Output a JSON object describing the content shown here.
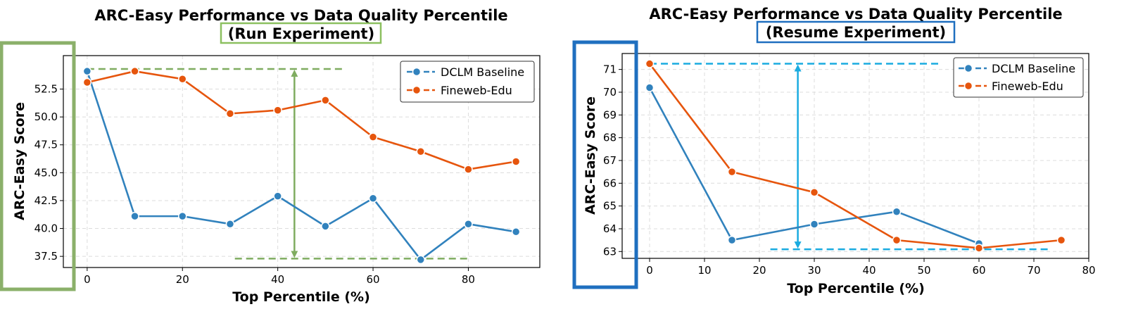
{
  "chart_data": [
    {
      "type": "line",
      "title": "ARC-Easy Performance vs Data Quality Percentile",
      "subtitle": "(Run Experiment)",
      "xlabel": "Top Percentile (%)",
      "ylabel": "ARC-Easy Score",
      "xlim": [
        -5,
        95
      ],
      "ylim": [
        36.5,
        55.5
      ],
      "xticks": [
        "0",
        "20",
        "40",
        "60",
        "80"
      ],
      "yticks": [
        "37.5",
        "40.0",
        "42.5",
        "45.0",
        "47.5",
        "50.0",
        "52.5"
      ],
      "grid": true,
      "legend_position": "top-right",
      "series": [
        {
          "name": "DCLM Baseline",
          "color": "#3182bd",
          "x": [
            0,
            10,
            20,
            30,
            40,
            50,
            60,
            70,
            80,
            90
          ],
          "y": [
            54.1,
            41.1,
            41.1,
            40.4,
            42.9,
            40.2,
            42.7,
            37.2,
            40.4,
            39.7
          ]
        },
        {
          "name": "Fineweb-Edu",
          "color": "#e6550d",
          "x": [
            0,
            10,
            20,
            30,
            40,
            50,
            60,
            70,
            80,
            90
          ],
          "y": [
            53.1,
            54.1,
            53.4,
            50.3,
            50.6,
            51.5,
            48.2,
            46.9,
            45.3,
            46.0
          ]
        }
      ],
      "annotation": {
        "color": "#7fac60",
        "top_value": 54.3,
        "bottom_value": 37.3,
        "top_line_x": [
          0,
          54
        ],
        "bottom_line_x": [
          31,
          80
        ],
        "arrow_x": 43.5
      }
    },
    {
      "type": "line",
      "title": "ARC-Easy Performance vs Data Quality Percentile",
      "subtitle": "(Resume Experiment)",
      "xlabel": "Top Percentile (%)",
      "ylabel": "ARC-Easy Score",
      "xlim": [
        -5,
        80
      ],
      "ylim": [
        62.7,
        71.7
      ],
      "xticks": [
        "0",
        "10",
        "20",
        "30",
        "40",
        "50",
        "60",
        "70",
        "80"
      ],
      "yticks": [
        "63",
        "64",
        "65",
        "66",
        "67",
        "68",
        "69",
        "70",
        "71"
      ],
      "grid": true,
      "legend_position": "top-right",
      "series": [
        {
          "name": "DCLM Baseline",
          "color": "#3182bd",
          "x": [
            0,
            15,
            30,
            45,
            60
          ],
          "y": [
            70.2,
            63.5,
            64.2,
            64.75,
            63.35
          ]
        },
        {
          "name": "Fineweb-Edu",
          "color": "#e6550d",
          "x": [
            0,
            15,
            30,
            45,
            60,
            75
          ],
          "y": [
            71.25,
            66.5,
            65.6,
            63.5,
            63.15,
            63.5
          ]
        }
      ],
      "annotation": {
        "color": "#1aabe0",
        "top_value": 71.25,
        "bottom_value": 63.1,
        "top_line_x": [
          0,
          53
        ],
        "bottom_line_x": [
          22,
          73
        ],
        "arrow_x": 27
      }
    }
  ]
}
